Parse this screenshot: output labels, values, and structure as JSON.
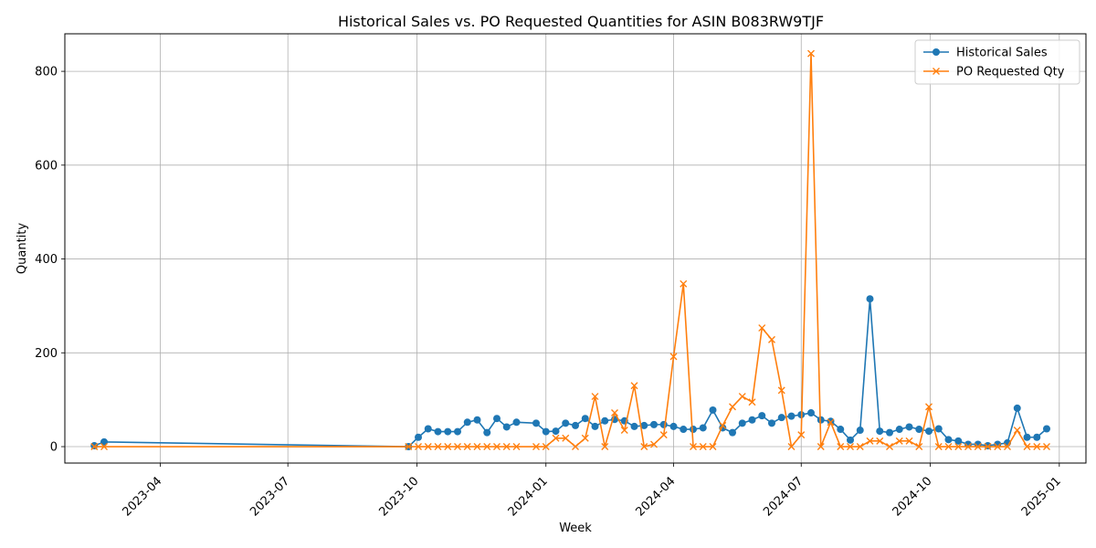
{
  "chart_data": {
    "type": "line",
    "title": "Historical Sales vs. PO Requested Quantities for ASIN B083RW9TJF",
    "xlabel": "Week",
    "ylabel": "Quantity",
    "x_axis": "date",
    "xlim": [
      "2023-01-23",
      "2025-01-20"
    ],
    "ylim": [
      -35,
      880
    ],
    "grid": true,
    "legend_position": "top-right",
    "x_ticks": [
      {
        "date": "2023-04-01",
        "label": "2023-04"
      },
      {
        "date": "2023-07-01",
        "label": "2023-07"
      },
      {
        "date": "2023-10-01",
        "label": "2023-10"
      },
      {
        "date": "2024-01-01",
        "label": "2024-01"
      },
      {
        "date": "2024-04-01",
        "label": "2024-04"
      },
      {
        "date": "2024-07-01",
        "label": "2024-07"
      },
      {
        "date": "2024-10-01",
        "label": "2024-10"
      },
      {
        "date": "2025-01-01",
        "label": "2025-01"
      }
    ],
    "y_ticks": [
      0,
      200,
      400,
      600,
      800
    ],
    "x": [
      "2023-02-13",
      "2023-02-20",
      "2023-09-25",
      "2023-10-02",
      "2023-10-09",
      "2023-10-16",
      "2023-10-23",
      "2023-10-30",
      "2023-11-06",
      "2023-11-13",
      "2023-11-20",
      "2023-11-27",
      "2023-12-04",
      "2023-12-11",
      "2023-12-25",
      "2024-01-01",
      "2024-01-08",
      "2024-01-15",
      "2024-01-22",
      "2024-01-29",
      "2024-02-05",
      "2024-02-12",
      "2024-02-19",
      "2024-02-26",
      "2024-03-04",
      "2024-03-11",
      "2024-03-18",
      "2024-03-25",
      "2024-04-01",
      "2024-04-08",
      "2024-04-15",
      "2024-04-22",
      "2024-04-29",
      "2024-05-06",
      "2024-05-13",
      "2024-05-20",
      "2024-05-27",
      "2024-06-03",
      "2024-06-10",
      "2024-06-17",
      "2024-06-24",
      "2024-07-01",
      "2024-07-08",
      "2024-07-15",
      "2024-07-22",
      "2024-07-29",
      "2024-08-05",
      "2024-08-12",
      "2024-08-19",
      "2024-08-26",
      "2024-09-02",
      "2024-09-09",
      "2024-09-16",
      "2024-09-23",
      "2024-09-30",
      "2024-10-07",
      "2024-10-14",
      "2024-10-21",
      "2024-10-28",
      "2024-11-04",
      "2024-11-11",
      "2024-11-18",
      "2024-11-25",
      "2024-12-02",
      "2024-12-09",
      "2024-12-16",
      "2024-12-23"
    ],
    "series": [
      {
        "name": "Historical Sales",
        "color": "#1f77b4",
        "marker": "circle",
        "values": [
          2,
          10,
          0,
          20,
          38,
          32,
          32,
          32,
          52,
          57,
          30,
          60,
          42,
          52,
          50,
          32,
          33,
          50,
          45,
          60,
          43,
          55,
          58,
          55,
          43,
          45,
          47,
          47,
          43,
          37,
          37,
          40,
          78,
          40,
          30,
          50,
          57,
          66,
          50,
          62,
          65,
          68,
          72,
          57,
          54,
          37,
          14,
          35,
          315,
          33,
          30,
          37,
          42,
          37,
          33,
          38,
          15,
          12,
          5,
          5,
          2,
          5,
          8,
          82,
          20,
          20,
          38
        ]
      },
      {
        "name": "PO Requested Qty",
        "color": "#ff7f0e",
        "marker": "x",
        "values": [
          0,
          0,
          0,
          0,
          0,
          0,
          0,
          0,
          0,
          0,
          0,
          0,
          0,
          0,
          0,
          0,
          18,
          18,
          0,
          18,
          107,
          0,
          72,
          35,
          130,
          0,
          5,
          25,
          192,
          347,
          0,
          0,
          0,
          45,
          85,
          107,
          95,
          253,
          228,
          120,
          0,
          25,
          838,
          0,
          52,
          0,
          0,
          0,
          12,
          12,
          0,
          12,
          12,
          0,
          85,
          0,
          0,
          0,
          0,
          0,
          0,
          0,
          0,
          35,
          0,
          0,
          0
        ]
      }
    ]
  }
}
